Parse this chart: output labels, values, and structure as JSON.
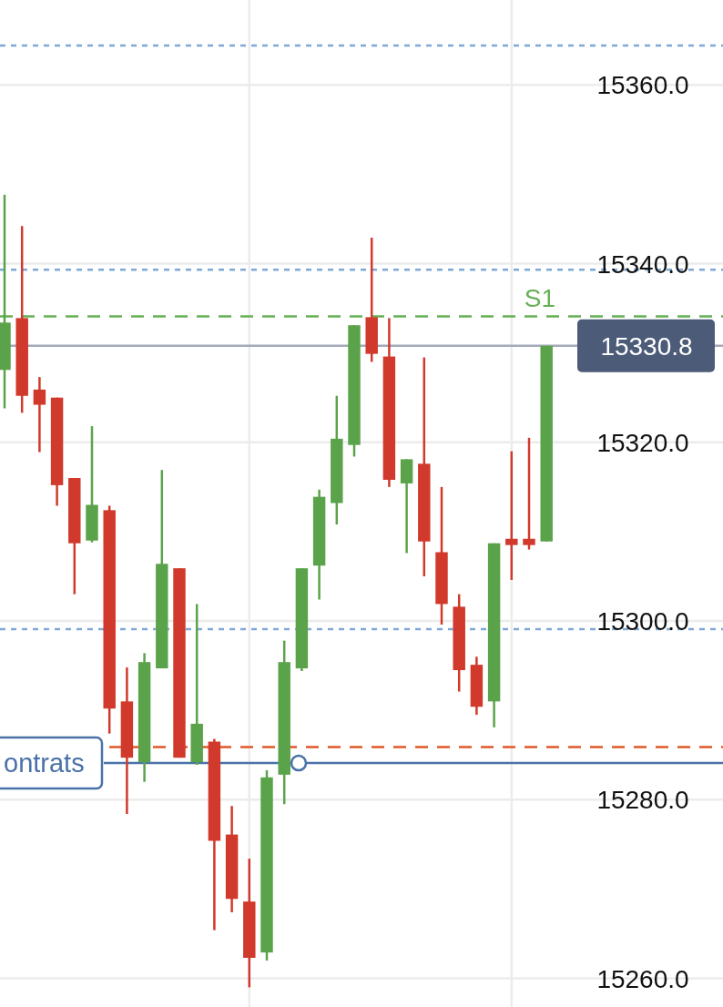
{
  "chart_data": {
    "type": "candlestick",
    "categories": [
      null,
      null,
      null,
      null,
      null,
      null,
      null,
      null,
      null,
      null,
      null,
      null,
      null,
      null,
      null,
      null,
      null,
      null,
      null,
      null,
      null,
      null,
      null,
      null,
      null,
      null,
      null,
      null,
      null,
      null,
      null,
      null
    ],
    "ohlc": [
      [
        15328.1,
        15347.7,
        15323.8,
        15333.4
      ],
      [
        15333.9,
        15344.2,
        15323.3,
        15325.2
      ],
      [
        15325.9,
        15327.3,
        15318.9,
        15324.2
      ],
      [
        15325.0,
        15325.0,
        15312.9,
        15315.2
      ],
      [
        15316.0,
        15316.0,
        15303.0,
        15308.7
      ],
      [
        15309.0,
        15321.8,
        15308.8,
        15313.0
      ],
      [
        15312.4,
        15312.9,
        15287.4,
        15290.2
      ],
      [
        15291.0,
        15294.8,
        15278.4,
        15284.7
      ],
      [
        15284.2,
        15296.4,
        15282.0,
        15295.4
      ],
      [
        15294.7,
        15316.9,
        15294.7,
        15306.4
      ],
      [
        15305.9,
        15305.9,
        15284.7,
        15284.7
      ],
      [
        15284.2,
        15301.9,
        15283.9,
        15288.5
      ],
      [
        15286.5,
        15286.8,
        15265.4,
        15275.4
      ],
      [
        15276.1,
        15279.3,
        15267.4,
        15268.9
      ],
      [
        15268.6,
        15273.4,
        15259.0,
        15262.3
      ],
      [
        15262.9,
        15283.3,
        15262.0,
        15282.5
      ],
      [
        15282.8,
        15297.8,
        15279.5,
        15295.4
      ],
      [
        15294.7,
        15305.9,
        15294.4,
        15305.9
      ],
      [
        15306.2,
        15314.7,
        15302.4,
        15313.9
      ],
      [
        15313.2,
        15325.2,
        15310.8,
        15320.4
      ],
      [
        15319.7,
        15333.1,
        15318.4,
        15333.1
      ],
      [
        15334.0,
        15342.9,
        15329.0,
        15329.9
      ],
      [
        15329.6,
        15333.9,
        15315.0,
        15315.8
      ],
      [
        15315.4,
        15318.1,
        15307.6,
        15318.1
      ],
      [
        15317.6,
        15329.5,
        15305.0,
        15308.9
      ],
      [
        15307.7,
        15315.0,
        15299.6,
        15301.9
      ],
      [
        15301.6,
        15303.0,
        15292.1,
        15294.5
      ],
      [
        15295.1,
        15296.0,
        15289.5,
        15290.4
      ],
      [
        15291.0,
        15308.7,
        15288.1,
        15308.7
      ],
      [
        15309.2,
        15319.0,
        15304.6,
        15308.5
      ],
      [
        15309.2,
        15320.5,
        15308.0,
        15308.5
      ],
      [
        15308.9,
        15330.8,
        15308.9,
        15330.8
      ]
    ],
    "colors": [
      "#5ba34a",
      "#d0392b",
      "#d0392b",
      "#d0392b",
      "#d0392b",
      "#5ba34a",
      "#d0392b",
      "#d0392b",
      "#5ba34a",
      "#5ba34a",
      "#d0392b",
      "#5ba34a",
      "#d0392b",
      "#d0392b",
      "#d0392b",
      "#5ba34a",
      "#5ba34a",
      "#5ba34a",
      "#5ba34a",
      "#5ba34a",
      "#5ba34a",
      "#d0392b",
      "#d0392b",
      "#5ba34a",
      "#d0392b",
      "#d0392b",
      "#d0392b",
      "#d0392b",
      "#5ba34a",
      "#d0392b",
      "#d0392b",
      "#5ba34a"
    ],
    "ylim": [
      15256.8,
      15369.5
    ],
    "yticks": [
      {
        "value": 15260,
        "label": "15260.0"
      },
      {
        "value": 15280,
        "label": "15280.0"
      },
      {
        "value": 15300,
        "label": "15300.0"
      },
      {
        "value": 15320,
        "label": "15320.0"
      },
      {
        "value": 15340,
        "label": "15340.0"
      },
      {
        "value": 15360,
        "label": "15360.0"
      }
    ],
    "grid": true,
    "tick_labels": "y",
    "ref_lines": [
      {
        "axis": "y",
        "value": 15364.4,
        "label": null,
        "color": "#7fa8d8",
        "line_style": "dotted"
      },
      {
        "axis": "y",
        "value": 15339.3,
        "label": null,
        "color": "#7fa8d8",
        "line_style": "dotted"
      },
      {
        "axis": "y",
        "value": 15334.1,
        "label": "S1",
        "color": "#66b055",
        "line_style": "dashed"
      },
      {
        "axis": "y",
        "value": 15330.8,
        "label": "15330.8",
        "color": "#a2aab8",
        "line_style": "solid"
      },
      {
        "axis": "y",
        "value": 15299.1,
        "label": null,
        "color": "#7fa8d8",
        "line_style": "dotted"
      },
      {
        "axis": "y",
        "value": 15285.9,
        "label": null,
        "color": "#e0592a",
        "line_style": "dashed"
      },
      {
        "axis": "y",
        "value": 15284.1,
        "label": "ontrats",
        "color": "#4a72a8",
        "line_style": "solid"
      }
    ]
  }
}
